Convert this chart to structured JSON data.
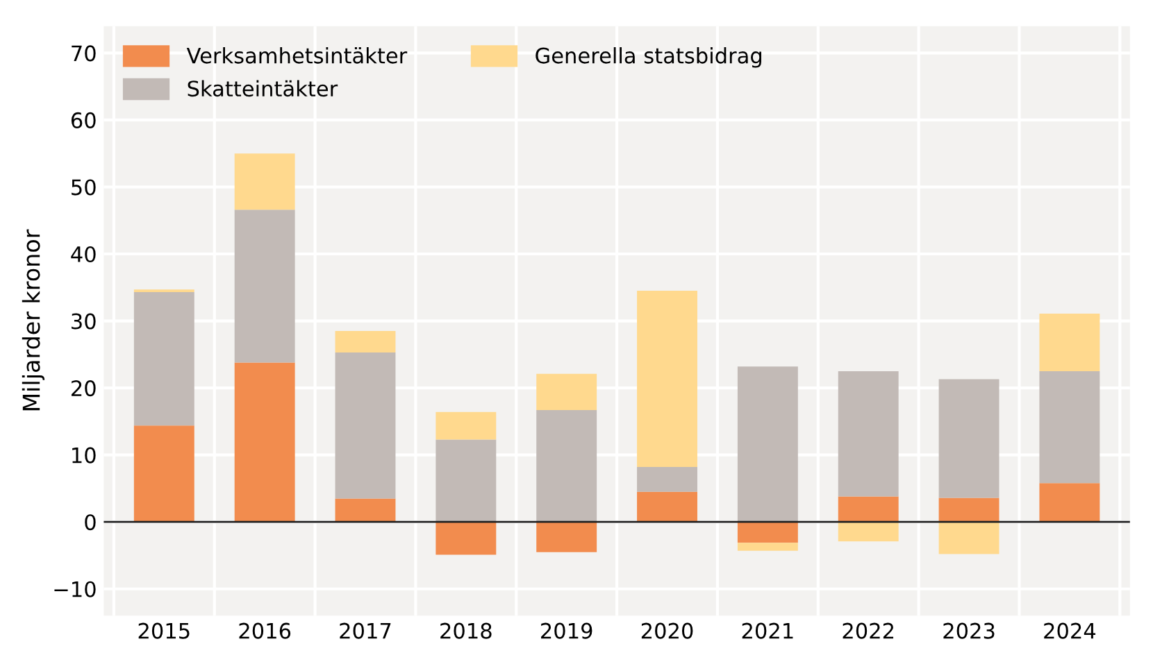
{
  "chart_data": {
    "type": "bar",
    "stacked": true,
    "ylabel": "Miljarder kronor",
    "categories": [
      "2015",
      "2016",
      "2017",
      "2018",
      "2019",
      "2020",
      "2021",
      "2022",
      "2023",
      "2024"
    ],
    "series": [
      {
        "name": "Verksamhetsintäkter",
        "color": "#f28c4e",
        "values": [
          14.4,
          23.8,
          3.5,
          -4.9,
          -4.5,
          4.5,
          -3.1,
          3.8,
          3.6,
          5.8
        ]
      },
      {
        "name": "Skatteintäkter",
        "color": "#c2bab6",
        "values": [
          19.9,
          22.8,
          21.8,
          12.3,
          16.7,
          3.7,
          23.2,
          18.7,
          17.7,
          16.7
        ]
      },
      {
        "name": "Generella statsbidrag",
        "color": "#ffd98e",
        "values": [
          0.4,
          8.4,
          3.2,
          4.1,
          5.4,
          26.3,
          -1.2,
          -2.9,
          -4.8,
          8.6
        ]
      }
    ],
    "ylim": [
      -14,
      74
    ],
    "yticks": [
      {
        "value": -10,
        "label": "−10"
      },
      0,
      10,
      20,
      30,
      40,
      50,
      60,
      70
    ],
    "grid": true,
    "legend": "top left"
  }
}
